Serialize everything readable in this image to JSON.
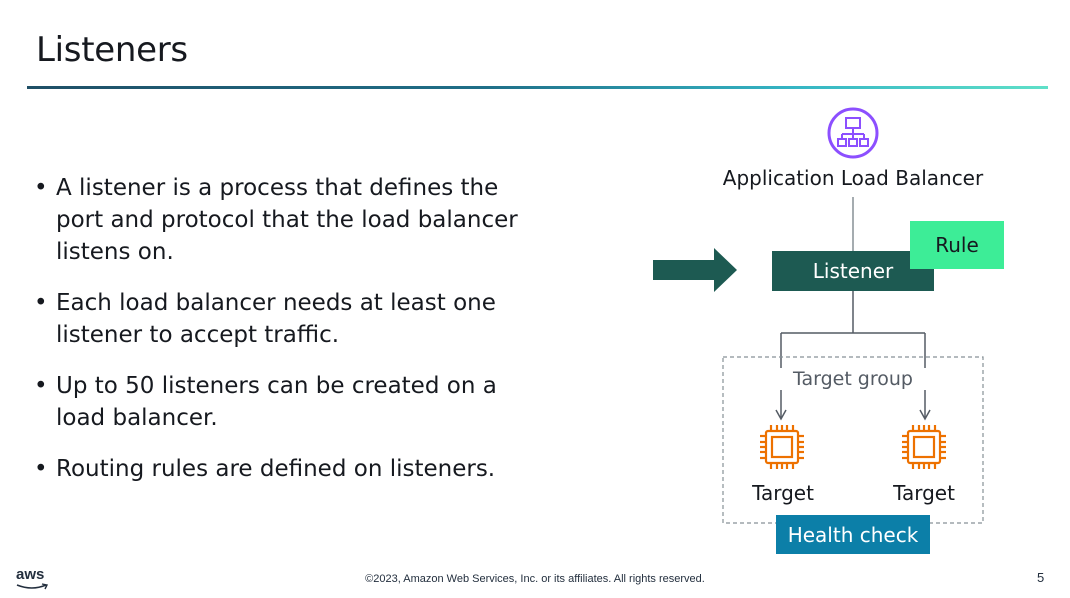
{
  "slide": {
    "title": "Listeners",
    "bullets": [
      "A listener is a process that defines the port and protocol that the load balancer listens on.",
      "Each load balancer needs at least one listener to accept traffic.",
      "Up to 50 listeners can be created on a load balancer.",
      "Routing rules are defined on listeners."
    ],
    "page_number": "5"
  },
  "diagram": {
    "alb_label": "Application Load Balancer",
    "listener_label": "Listener",
    "rule_label": "Rule",
    "target_group_label": "Target group",
    "target_labels": [
      "Target",
      "Target"
    ],
    "health_check_label": "Health check",
    "icons": {
      "alb": "application-load-balancer-icon",
      "target": "ec2-instance-chip-icon",
      "arrow": "traffic-arrow-icon"
    },
    "colors": {
      "listener": "#1d5a52",
      "rule": "#3ded97",
      "health_check": "#0c7fa8",
      "alb_icon": "#8c4fff",
      "target_icon": "#ed7100",
      "arrow": "#1d5a52"
    }
  },
  "footer": {
    "logo_text": "aws",
    "copyright": "©2023, Amazon Web Services, Inc. or its affiliates. All rights reserved."
  }
}
